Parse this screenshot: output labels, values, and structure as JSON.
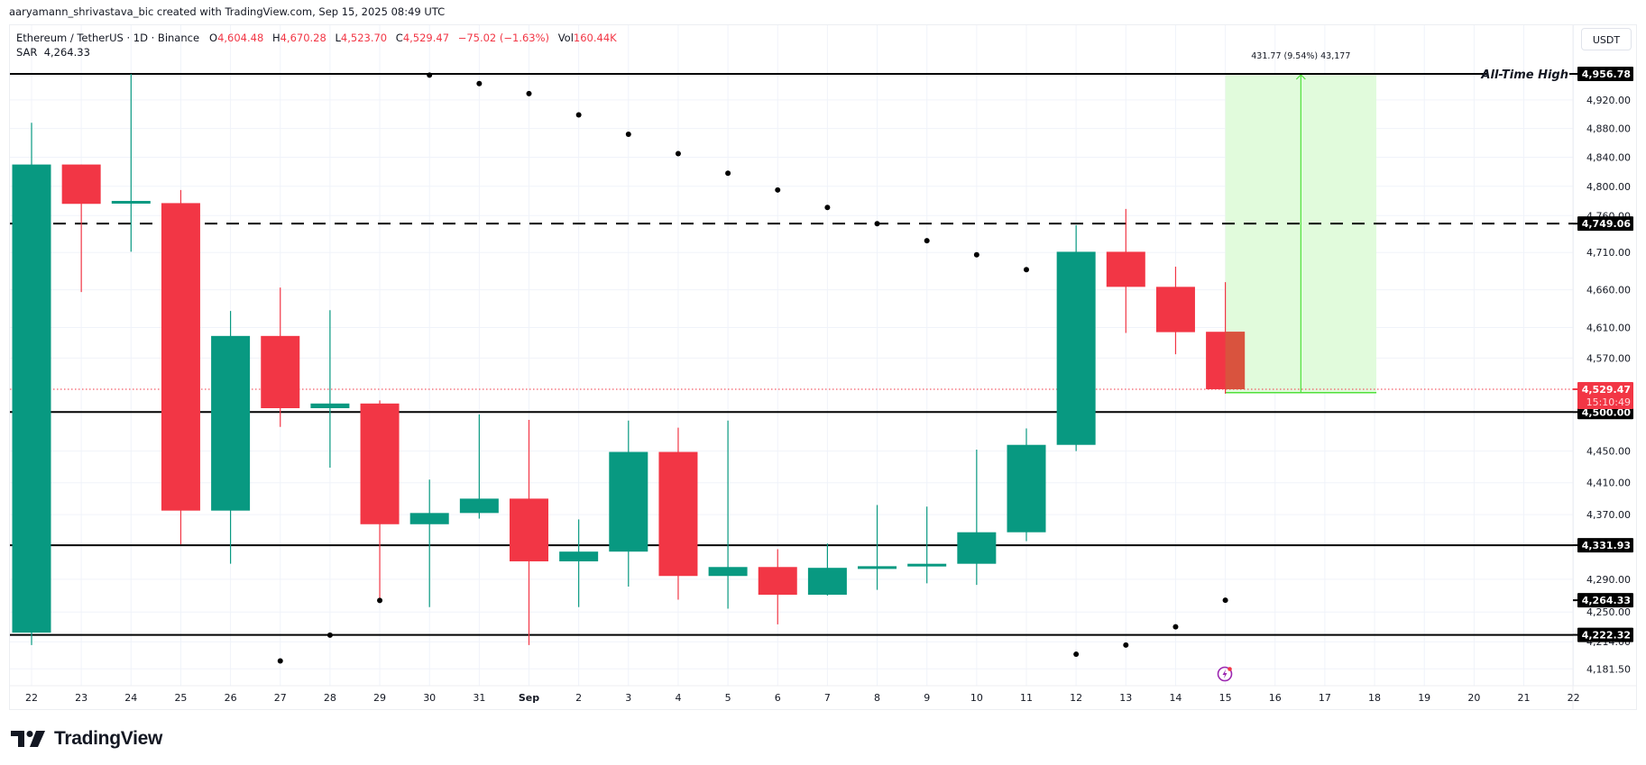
{
  "credit": "aaryamann_shrivastava_bic created with TradingView.com, Sep 15, 2025 08:49 UTC",
  "legend": {
    "symbol": "Ethereum / TetherUS · 1D · Binance",
    "o_label": "O",
    "o_value": "4,604.48",
    "h_label": "H",
    "h_value": "4,670.28",
    "l_label": "L",
    "l_value": "4,523.70",
    "c_label": "C",
    "c_value": "4,529.47",
    "change": "−75.02 (−1.63%)",
    "vol_label": "Vol",
    "vol_value": "160.44K",
    "sar_label": "SAR",
    "sar_value": "4,264.33"
  },
  "currency_button": "USDT",
  "logo_text": "TradingView",
  "colors": {
    "up": "#089981",
    "down": "#F23645",
    "grid": "#f0f3fa",
    "level_line": "#000000",
    "measure_fill": "#e1fbdc",
    "measure_stroke": "#4fe03a",
    "last_price_bg": "#F23645"
  },
  "chart_data": {
    "type": "candlestick",
    "title": "Ethereum / TetherUS · 1D · Binance",
    "xlabel": "",
    "ylabel": "USDT",
    "scale": "log",
    "ylim": [
      4160,
      4990
    ],
    "grid": true,
    "x_tick_labels": [
      "22",
      "23",
      "24",
      "25",
      "26",
      "27",
      "28",
      "29",
      "30",
      "31",
      "Sep",
      "2",
      "3",
      "4",
      "5",
      "6",
      "7",
      "8",
      "9",
      "10",
      "11",
      "12",
      "13",
      "14",
      "15",
      "16",
      "17",
      "18",
      "19",
      "20",
      "21",
      "22"
    ],
    "y_tick_labels": [
      "4,920.00",
      "4,880.00",
      "4,840.00",
      "4,800.00",
      "4,760.00",
      "4,710.00",
      "4,660.00",
      "4,610.00",
      "4,570.00",
      "4,450.00",
      "4,410.00",
      "4,370.00",
      "4,290.00",
      "4,250.00",
      "4,214.00",
      "4,181.50"
    ],
    "y_ticks": [
      4920,
      4880,
      4840,
      4800,
      4760,
      4710,
      4660,
      4610,
      4570,
      4450,
      4410,
      4370,
      4290,
      4250,
      4214,
      4181.5
    ],
    "categories": [
      "Aug 22",
      "Aug 23",
      "Aug 24",
      "Aug 25",
      "Aug 26",
      "Aug 27",
      "Aug 28",
      "Aug 29",
      "Aug 30",
      "Aug 31",
      "Sep 1",
      "Sep 2",
      "Sep 3",
      "Sep 4",
      "Sep 5",
      "Sep 6",
      "Sep 7",
      "Sep 8",
      "Sep 9",
      "Sep 10",
      "Sep 11",
      "Sep 12",
      "Sep 13",
      "Sep 14",
      "Sep 15"
    ],
    "ohlc": [
      [
        4225,
        4888,
        4210,
        4830
      ],
      [
        4830,
        4830,
        4657,
        4776
      ],
      [
        4777,
        4956.78,
        4711,
        4780
      ],
      [
        4777,
        4795,
        4333,
        4375
      ],
      [
        4375,
        4632,
        4309,
        4599
      ],
      [
        4599,
        4663,
        4481,
        4505
      ],
      [
        4505,
        4633,
        4429,
        4511
      ],
      [
        4511,
        4515,
        4263,
        4358
      ],
      [
        4358,
        4414,
        4256,
        4372
      ],
      [
        4372,
        4497,
        4365,
        4390
      ],
      [
        4390,
        4490,
        4210,
        4312
      ],
      [
        4312,
        4364,
        4256,
        4324
      ],
      [
        4324,
        4489,
        4281,
        4449
      ],
      [
        4449,
        4480,
        4265,
        4294
      ],
      [
        4294,
        4489,
        4254,
        4305
      ],
      [
        4305,
        4327,
        4235,
        4271
      ],
      [
        4271,
        4334,
        4270,
        4304
      ],
      [
        4304,
        4382,
        4277,
        4306
      ],
      [
        4306,
        4380,
        4285,
        4309
      ],
      [
        4309,
        4452,
        4283,
        4348
      ],
      [
        4348,
        4479,
        4337,
        4458
      ],
      [
        4458,
        4747,
        4450,
        4711
      ],
      [
        4711,
        4769,
        4603,
        4664
      ],
      [
        4664,
        4691,
        4575,
        4604
      ],
      [
        4604.48,
        4670.28,
        4523.7,
        4529.47
      ]
    ],
    "ohlc_order": [
      "open",
      "high",
      "low",
      "close"
    ],
    "series": [
      {
        "name": "SAR",
        "type": "scatter",
        "x_index": [
          5,
          6,
          7,
          8,
          9,
          10,
          11,
          12,
          13,
          14,
          15,
          16,
          17,
          18,
          19,
          20,
          21,
          22,
          23,
          24
        ],
        "values": [
          4191,
          4222,
          4264,
          4955,
          4943,
          4929,
          4899,
          4872,
          4845,
          4818,
          4795,
          4771,
          4749,
          4726,
          4707,
          4687,
          4199,
          4210,
          4232,
          4264.33
        ]
      }
    ],
    "horizontal_levels": [
      {
        "price": 4956.78,
        "label": "4,956.78",
        "style": "solid",
        "annotation": "All-Time High"
      },
      {
        "price": 4749.06,
        "label": "4,749.06",
        "style": "dashed"
      },
      {
        "price": 4500.0,
        "label": "4,500.00",
        "style": "solid"
      },
      {
        "price": 4331.93,
        "label": "4,331.93",
        "style": "solid"
      },
      {
        "price": 4222.32,
        "label": "4,222.32",
        "style": "solid"
      }
    ],
    "last_price": {
      "price": 4529.47,
      "label": "4,529.47",
      "countdown": "15:10:49"
    },
    "sar_marker": {
      "price": 4264.33,
      "label": "4,264.33"
    },
    "measurement": {
      "from_index": 24,
      "to_index": 27,
      "from_price": 4525.01,
      "to_price": 4956.78,
      "label": "431.77 (9.54%) 43,177"
    },
    "annotations": [
      "All-Time High"
    ]
  }
}
